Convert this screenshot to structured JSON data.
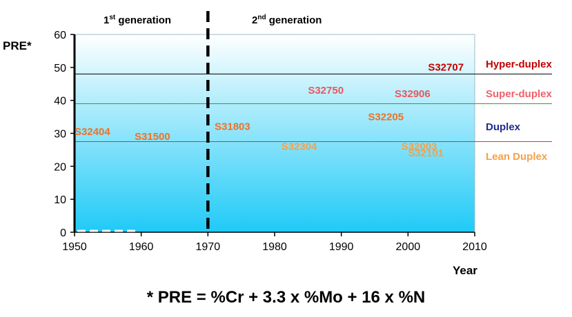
{
  "chart_data": {
    "type": "scatter",
    "title": "",
    "ylabel": "PRE*",
    "xlabel": "Year",
    "xlim": [
      1950,
      2010
    ],
    "ylim": [
      0,
      60
    ],
    "x_ticks": [
      1950,
      1960,
      1970,
      1980,
      1990,
      2000,
      2010
    ],
    "y_ticks": [
      0,
      10,
      20,
      30,
      40,
      50,
      60
    ],
    "generations": [
      {
        "label": "1",
        "sup": "st",
        "rest": " generation"
      },
      {
        "label": "2",
        "sup": "nd",
        "rest": " generation"
      }
    ],
    "generation_divider_year": 1970,
    "thresholds": [
      {
        "name": "Hyper-duplex boundary",
        "value": 48,
        "color": "#000000"
      },
      {
        "name": "Super-duplex boundary",
        "value": 39,
        "color": "#2e9e3a"
      },
      {
        "name": "Duplex boundary",
        "value": 27.5,
        "color": "#e0302a"
      }
    ],
    "categories": [
      {
        "label": "Hyper-duplex",
        "color": "#c00000",
        "y": 51
      },
      {
        "label": "Super-duplex",
        "color": "#f0606a",
        "y": 42
      },
      {
        "label": "Duplex",
        "color": "#1f2b8f",
        "y": 32
      },
      {
        "label": "Lean Duplex",
        "color": "#f5a04a",
        "y": 23
      }
    ],
    "points": [
      {
        "grade": "S32707",
        "year": 2003,
        "pre": 49,
        "color": "#c00000"
      },
      {
        "grade": "S32750",
        "year": 1985,
        "pre": 42,
        "color": "#e8585c"
      },
      {
        "grade": "S32906",
        "year": 1998,
        "pre": 41,
        "color": "#e8585c"
      },
      {
        "grade": "S32205",
        "year": 1994,
        "pre": 34,
        "color": "#ee7226"
      },
      {
        "grade": "S31803",
        "year": 1971,
        "pre": 31,
        "color": "#ee7226"
      },
      {
        "grade": "S32404",
        "year": 1950,
        "pre": 29.5,
        "color": "#ee7226"
      },
      {
        "grade": "S31500",
        "year": 1959,
        "pre": 28,
        "color": "#ee7226"
      },
      {
        "grade": "S32304",
        "year": 1981,
        "pre": 25,
        "color": "#f5a04a"
      },
      {
        "grade": "S32003",
        "year": 1999,
        "pre": 25,
        "color": "#f5a04a"
      },
      {
        "grade": "S32101",
        "year": 2000,
        "pre": 23,
        "color": "#f5a04a"
      }
    ],
    "colors": {
      "bg_top": "#ffffff",
      "bg_bottom": "#1fcaf7",
      "axis": "#000000"
    }
  },
  "footnote": "* PRE = %Cr + 3.3 x %Mo + 16 x %N"
}
